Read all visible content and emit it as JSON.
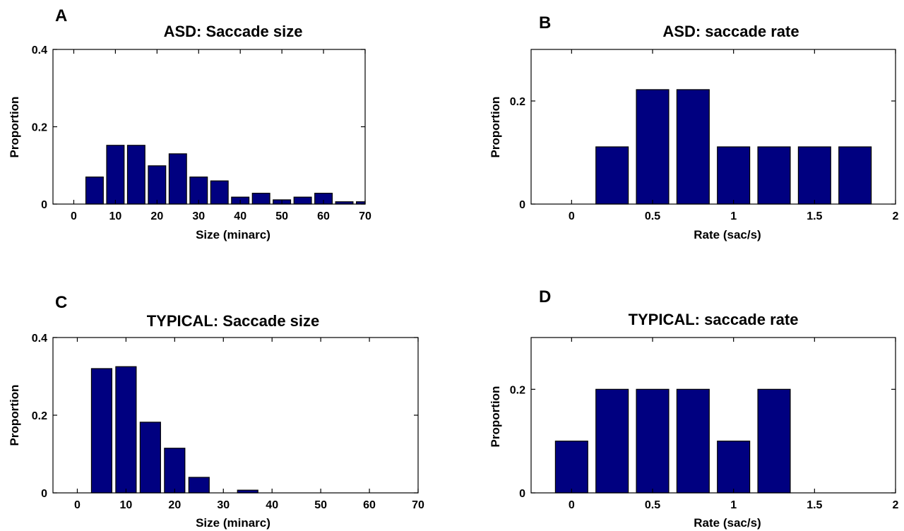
{
  "chart_data": [
    {
      "panel": "A",
      "type": "bar",
      "title": "ASD: Saccade size",
      "xlabel": "Size (minarc)",
      "ylabel": "Proportion",
      "xlim": [
        -5,
        70
      ],
      "ylim": [
        0,
        0.4
      ],
      "xticks": [
        0,
        10,
        20,
        30,
        40,
        50,
        60,
        70
      ],
      "yticks": [
        0,
        0.2,
        0.4
      ],
      "xtick_labels": [
        "0",
        "10",
        "20",
        "30",
        "40",
        "50",
        "60",
        "70"
      ],
      "ytick_labels": [
        "0",
        "0.2",
        "0.4"
      ],
      "x": [
        5,
        10,
        15,
        20,
        25,
        30,
        35,
        40,
        45,
        50,
        55,
        60,
        65,
        70
      ],
      "values": [
        0.07,
        0.152,
        0.152,
        0.099,
        0.13,
        0.07,
        0.06,
        0.018,
        0.028,
        0.011,
        0.018,
        0.028,
        0.006,
        0.006
      ],
      "bar_width": 4.2,
      "grid": false
    },
    {
      "panel": "B",
      "type": "bar",
      "title": "ASD: saccade rate",
      "xlabel": "Rate (sac/s)",
      "ylabel": "Proportion",
      "xlim": [
        -0.25,
        2
      ],
      "ylim": [
        0,
        0.3
      ],
      "xticks": [
        0,
        0.5,
        1,
        1.5,
        2
      ],
      "yticks": [
        0,
        0.2
      ],
      "xtick_labels": [
        "0",
        "0.5",
        "1",
        "1.5",
        "2"
      ],
      "ytick_labels": [
        "0",
        "0.2"
      ],
      "x": [
        0.25,
        0.5,
        0.75,
        1.0,
        1.25,
        1.5,
        1.75
      ],
      "values": [
        0.111,
        0.222,
        0.222,
        0.111,
        0.111,
        0.111,
        0.111
      ],
      "bar_width": 0.2,
      "grid": false
    },
    {
      "panel": "C",
      "type": "bar",
      "title": "TYPICAL: Saccade size",
      "xlabel": "Size (minarc)",
      "ylabel": "Proportion",
      "xlim": [
        -5,
        70
      ],
      "ylim": [
        0,
        0.4
      ],
      "xticks": [
        0,
        10,
        20,
        30,
        40,
        50,
        60,
        70
      ],
      "yticks": [
        0,
        0.2,
        0.4
      ],
      "xtick_labels": [
        "0",
        "10",
        "20",
        "30",
        "40",
        "50",
        "60",
        "70"
      ],
      "ytick_labels": [
        "0",
        "0.2",
        "0.4"
      ],
      "x": [
        5,
        10,
        15,
        20,
        25,
        35
      ],
      "values": [
        0.32,
        0.325,
        0.182,
        0.115,
        0.04,
        0.007
      ],
      "bar_width": 4.2,
      "grid": false
    },
    {
      "panel": "D",
      "type": "bar",
      "title": "TYPICAL: saccade rate",
      "xlabel": "Rate (sac/s)",
      "ylabel": "Proportion",
      "xlim": [
        -0.25,
        2
      ],
      "ylim": [
        0,
        0.3
      ],
      "xticks": [
        0,
        0.5,
        1,
        1.5,
        2
      ],
      "yticks": [
        0,
        0.2
      ],
      "xtick_labels": [
        "0",
        "0.5",
        "1",
        "1.5",
        "2"
      ],
      "ytick_labels": [
        "0",
        "0.2"
      ],
      "x": [
        0.0,
        0.25,
        0.5,
        0.75,
        1.0,
        1.25
      ],
      "values": [
        0.1,
        0.2,
        0.2,
        0.2,
        0.1,
        0.2
      ],
      "bar_width": 0.2,
      "grid": false
    }
  ],
  "colors": {
    "bar_fill": "#000080",
    "axis": "#000000"
  }
}
